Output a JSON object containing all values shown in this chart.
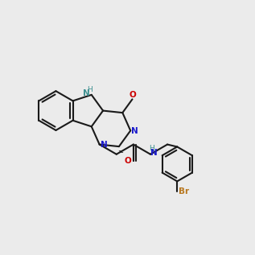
{
  "bg": "#ebebeb",
  "bc": "#1a1a1a",
  "nc": "#1a1acc",
  "oc": "#cc0000",
  "nhc": "#3d9090",
  "brc": "#b87820",
  "lw": 1.5
}
